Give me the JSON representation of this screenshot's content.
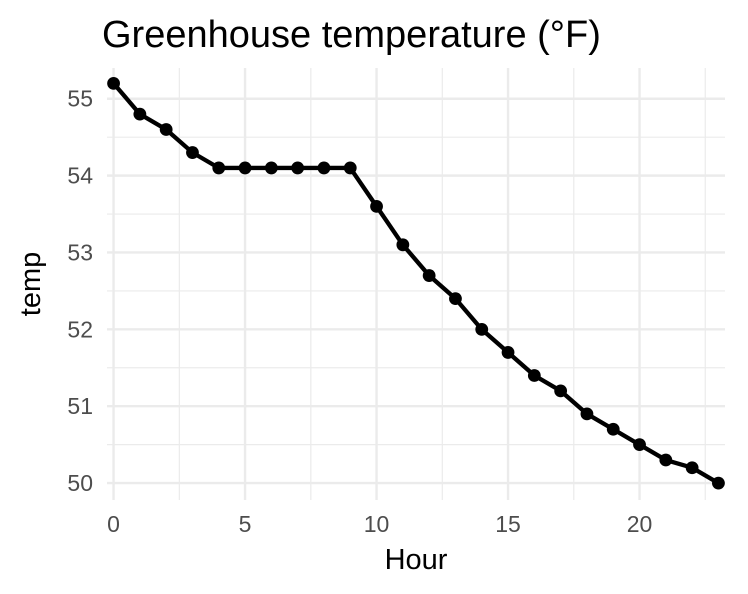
{
  "chart_data": {
    "type": "line",
    "title": "Greenhouse temperature (°F)",
    "xlabel": "Hour",
    "ylabel": "temp",
    "xlim": [
      -0.25,
      23.25
    ],
    "ylim": [
      49.78,
      55.4
    ],
    "x_ticks": [
      0,
      5,
      10,
      15,
      20
    ],
    "y_ticks": [
      50,
      51,
      52,
      53,
      54,
      55
    ],
    "x_minor": [
      2.5,
      7.5,
      12.5,
      17.5,
      22.5
    ],
    "y_minor": [
      50.5,
      51.5,
      52.5,
      53.5,
      54.5
    ],
    "grid": true,
    "legend": "none",
    "series": [
      {
        "color": "#000000",
        "x": [
          0,
          1,
          2,
          3,
          4,
          5,
          6,
          7,
          8,
          9,
          10,
          11,
          12,
          13,
          14,
          15,
          16,
          17,
          18,
          19,
          20,
          21,
          22,
          23
        ],
        "values": [
          55.2,
          54.8,
          54.6,
          54.3,
          54.1,
          54.1,
          54.1,
          54.1,
          54.1,
          54.1,
          53.6,
          53.1,
          52.7,
          52.4,
          52.0,
          51.7,
          51.4,
          51.2,
          50.9,
          50.7,
          50.5,
          50.3,
          50.2,
          50.0
        ]
      }
    ]
  }
}
